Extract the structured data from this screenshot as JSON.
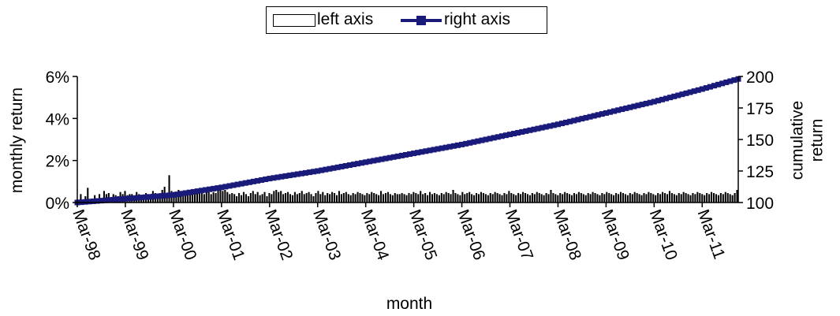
{
  "colors": {
    "series_line": "#1a1a7a",
    "bars": "#000000",
    "bar_fill": "#000000"
  },
  "legend": {
    "bars_label": "left axis",
    "line_label": "right axis",
    "placement": "top-center"
  },
  "chart_data": {
    "type": "bar+line",
    "title": "",
    "xlabel": "month",
    "ylabel_left": "monthly return",
    "ylabel_right": "cumulative return",
    "ylim_left": [
      0,
      6
    ],
    "ylim_right": [
      100,
      200
    ],
    "y_ticks_left": [
      "0%",
      "2%",
      "4%",
      "6%"
    ],
    "y_ticks_right": [
      "100",
      "125",
      "150",
      "175",
      "200"
    ],
    "x_ticks": [
      "Mar-98",
      "Mar-99",
      "Mar-00",
      "Mar-01",
      "Mar-02",
      "Mar-03",
      "Mar-04",
      "Mar-05",
      "Mar-06",
      "Mar-07",
      "Mar-08",
      "Mar-09",
      "Mar-10",
      "Mar-11"
    ],
    "x_start": "Mar-98",
    "x_end": "Dec-11",
    "series": [
      {
        "name": "left axis",
        "kind": "bar",
        "axis": "left",
        "values": [
          0.05,
          0.4,
          0.1,
          0.3,
          0.7,
          0.05,
          0.1,
          0.35,
          0.1,
          0.4,
          0.05,
          0.55,
          0.4,
          0.45,
          0.25,
          0.4,
          0.35,
          0.3,
          0.5,
          0.4,
          0.55,
          0.35,
          0.4,
          0.4,
          0.3,
          0.5,
          0.4,
          0.3,
          0.35,
          0.45,
          0.3,
          0.2,
          0.55,
          0.45,
          0.4,
          0.35,
          0.6,
          0.75,
          0.4,
          1.3,
          0.55,
          0.5,
          0.45,
          0.6,
          0.5,
          0.4,
          0.45,
          0.55,
          0.5,
          0.45,
          0.6,
          0.45,
          0.45,
          0.55,
          0.4,
          0.6,
          0.5,
          0.4,
          0.5,
          0.45,
          0.65,
          0.6,
          0.55,
          0.6,
          0.5,
          0.4,
          0.45,
          0.4,
          0.3,
          0.45,
          0.35,
          0.5,
          0.4,
          0.3,
          0.45,
          0.55,
          0.4,
          0.5,
          0.35,
          0.4,
          0.5,
          0.3,
          0.45,
          0.4,
          0.55,
          0.6,
          0.5,
          0.55,
          0.4,
          0.45,
          0.5,
          0.4,
          0.35,
          0.5,
          0.4,
          0.45,
          0.55,
          0.4,
          0.45,
          0.5,
          0.4,
          0.3,
          0.45,
          0.55,
          0.4,
          0.5,
          0.35,
          0.45,
          0.4,
          0.5,
          0.45,
          0.35,
          0.55,
          0.4,
          0.45,
          0.5,
          0.4,
          0.35,
          0.45,
          0.4,
          0.5,
          0.45,
          0.4,
          0.35,
          0.45,
          0.4,
          0.5,
          0.45,
          0.4,
          0.35,
          0.55,
          0.4,
          0.45,
          0.5,
          0.4,
          0.35,
          0.45,
          0.4,
          0.4,
          0.45,
          0.4,
          0.35,
          0.45,
          0.4,
          0.5,
          0.45,
          0.4,
          0.55,
          0.4,
          0.45,
          0.35,
          0.5,
          0.4,
          0.45,
          0.4,
          0.35,
          0.45,
          0.4,
          0.5,
          0.45,
          0.4,
          0.6,
          0.45,
          0.4,
          0.35,
          0.5,
          0.4,
          0.45,
          0.5,
          0.4,
          0.35,
          0.45,
          0.4,
          0.5,
          0.45,
          0.4,
          0.35,
          0.45,
          0.4,
          0.5,
          0.45,
          0.4,
          0.35,
          0.45,
          0.4,
          0.55,
          0.45,
          0.4,
          0.35,
          0.45,
          0.4,
          0.5,
          0.45,
          0.4,
          0.35,
          0.45,
          0.4,
          0.5,
          0.45,
          0.4,
          0.35,
          0.45,
          0.4,
          0.6,
          0.45,
          0.4,
          0.35,
          0.45,
          0.4,
          0.5,
          0.45,
          0.4,
          0.35,
          0.45,
          0.4,
          0.5,
          0.45,
          0.4,
          0.35,
          0.45,
          0.4,
          0.5,
          0.45,
          0.4,
          0.35,
          0.45,
          0.4,
          0.5,
          0.45,
          0.4,
          0.35,
          0.45,
          0.4,
          0.5,
          0.45,
          0.4,
          0.35,
          0.45,
          0.4,
          0.5,
          0.45,
          0.4,
          0.35,
          0.45,
          0.4,
          0.5,
          0.45,
          0.4,
          0.35,
          0.45,
          0.4,
          0.5,
          0.45,
          0.4,
          0.55,
          0.45,
          0.4,
          0.35,
          0.45,
          0.4,
          0.5,
          0.45,
          0.4,
          0.35,
          0.45,
          0.4,
          0.5,
          0.45,
          0.4,
          0.35,
          0.45,
          0.4,
          0.5,
          0.45,
          0.4,
          0.35,
          0.45,
          0.4,
          0.5,
          0.45,
          0.4,
          0.35,
          0.45,
          0.6
        ]
      },
      {
        "name": "right axis",
        "kind": "line",
        "axis": "right",
        "x": [
          "Mar-98",
          "Mar-99",
          "Mar-00",
          "Mar-01",
          "Mar-02",
          "Mar-03",
          "Mar-04",
          "Mar-05",
          "Mar-06",
          "Mar-07",
          "Mar-08",
          "Mar-09",
          "Mar-10",
          "Mar-11",
          "Dec-11"
        ],
        "values": [
          100,
          103,
          106,
          112,
          119,
          125,
          132,
          139,
          146,
          154,
          162,
          171,
          180,
          190,
          198
        ]
      }
    ]
  }
}
